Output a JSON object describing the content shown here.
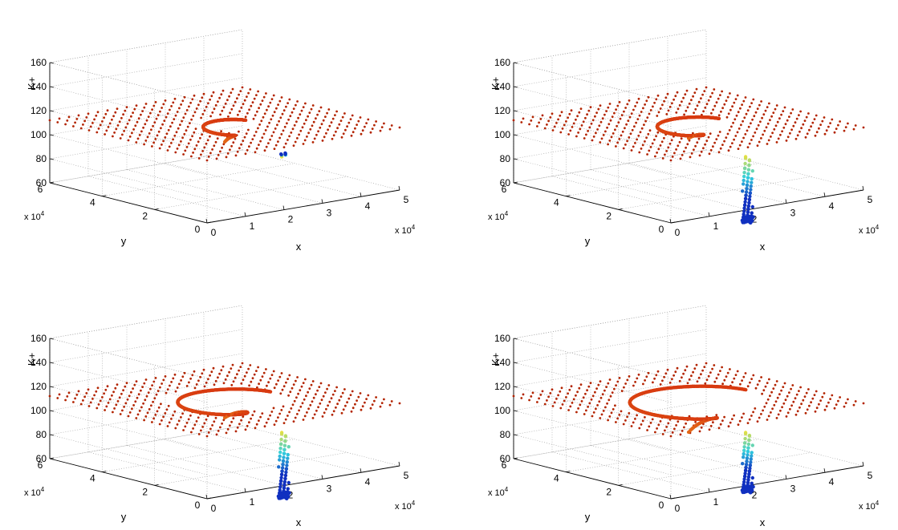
{
  "chart_data": [
    {
      "type": "scatter",
      "panel": "top-left",
      "zlabel": "K+",
      "xlabel": "x",
      "ylabel": "y",
      "zlim": [
        60,
        160
      ],
      "xlim": [
        0,
        5
      ],
      "ylim": [
        0,
        6
      ],
      "axis_multiplier": "x 10",
      "axis_multiplier_exp": "4",
      "z_ticks": [
        "60",
        "80",
        "100",
        "120",
        "140",
        "160"
      ],
      "x_ticks": [
        "0",
        "1",
        "2",
        "3",
        "4",
        "5"
      ],
      "y_ticks": [
        "0",
        "2",
        "4",
        "6"
      ],
      "grid": true,
      "plane_level": 112,
      "depression": {
        "center": [
          2.5,
          3.0
        ],
        "radius": 0.55,
        "min_value": 97,
        "drip_min": 100
      }
    },
    {
      "type": "scatter",
      "panel": "top-right",
      "zlabel": "K+",
      "xlabel": "x",
      "ylabel": "y",
      "zlim": [
        60,
        160
      ],
      "xlim": [
        0,
        5
      ],
      "ylim": [
        0,
        6
      ],
      "axis_multiplier": "x 10",
      "axis_multiplier_exp": "4",
      "z_ticks": [
        "60",
        "80",
        "100",
        "120",
        "140",
        "160"
      ],
      "x_ticks": [
        "0",
        "1",
        "2",
        "3",
        "4",
        "5"
      ],
      "y_ticks": [
        "0",
        "2",
        "4",
        "6"
      ],
      "grid": true,
      "plane_level": 112,
      "depression": {
        "center": [
          2.5,
          3.0
        ],
        "radius": 0.8,
        "min_value": 100,
        "drip_min": 45
      }
    },
    {
      "type": "scatter",
      "panel": "bottom-left",
      "zlabel": "K+",
      "xlabel": "x",
      "ylabel": "y",
      "zlim": [
        60,
        160
      ],
      "xlim": [
        0,
        5
      ],
      "ylim": [
        0,
        6
      ],
      "axis_multiplier": "x 10",
      "axis_multiplier_exp": "4",
      "z_ticks": [
        "60",
        "80",
        "100",
        "120",
        "140",
        "160"
      ],
      "x_ticks": [
        "0",
        "1",
        "2",
        "3",
        "4",
        "5"
      ],
      "y_ticks": [
        "0",
        "2",
        "4",
        "6"
      ],
      "grid": true,
      "plane_level": 112,
      "depression": {
        "center": [
          2.5,
          3.0
        ],
        "radius": 1.2,
        "min_value": 97,
        "drip_min": 45
      }
    },
    {
      "type": "scatter",
      "panel": "bottom-right",
      "zlabel": "K+",
      "xlabel": "x",
      "ylabel": "y",
      "zlim": [
        60,
        160
      ],
      "xlim": [
        0,
        5
      ],
      "ylim": [
        0,
        6
      ],
      "axis_multiplier": "x 10",
      "axis_multiplier_exp": "4",
      "z_ticks": [
        "60",
        "80",
        "100",
        "120",
        "140",
        "160"
      ],
      "x_ticks": [
        "0",
        "1",
        "2",
        "3",
        "4",
        "5"
      ],
      "y_ticks": [
        "0",
        "2",
        "4",
        "6"
      ],
      "grid": true,
      "plane_level": 112,
      "depression": {
        "center": [
          2.5,
          3.0
        ],
        "radius": 1.5,
        "min_value": 85,
        "drip_min": 50
      }
    }
  ],
  "colors": {
    "plane": "#b32400",
    "depression_core": "#d83a10",
    "depression_rim": "#f0a020",
    "drip_top": "#e8e040",
    "drip_mid": "#30d0e0",
    "drip_bottom": "#1030c0",
    "grid": "#999999"
  }
}
